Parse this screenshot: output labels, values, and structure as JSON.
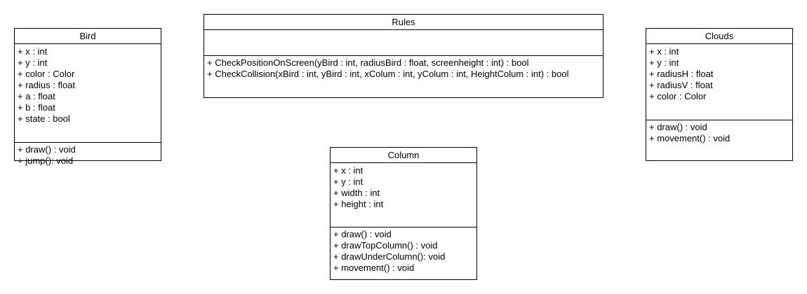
{
  "classes": {
    "bird": {
      "name": "Bird",
      "attributes": [
        "+ x : int",
        "+ y : int",
        "+ color : Color",
        "+ radius : float",
        "+ a : float",
        "+ b : float",
        "+ state : bool"
      ],
      "methods": [
        "+ draw() : void",
        "+ jump(): void"
      ]
    },
    "rules": {
      "name": "Rules",
      "attributes": [],
      "methods": [
        "+ CheckPositionOnScreen(yBird : int, radiusBird : float, screenheight : int) : bool",
        "+ CheckCollision(xBird : int, yBird : int, xColum : int, yColum : int, HeightColum : int) : bool"
      ]
    },
    "clouds": {
      "name": "Clouds",
      "attributes": [
        "+ x : int",
        "+ y : int",
        "+ radiusH : float",
        "+ radiusV : float",
        "+ color : Color"
      ],
      "methods": [
        "+ draw() : void",
        "+ movement() : void"
      ]
    },
    "column": {
      "name": "Column",
      "attributes": [
        "+ x : int",
        "+ y : int",
        "+ width : int",
        "+ height : int"
      ],
      "methods": [
        "+ draw() : void",
        "+ drawTopColumn() : void",
        "+ drawUnderColumn(): void",
        "+ movement() : void"
      ]
    }
  }
}
